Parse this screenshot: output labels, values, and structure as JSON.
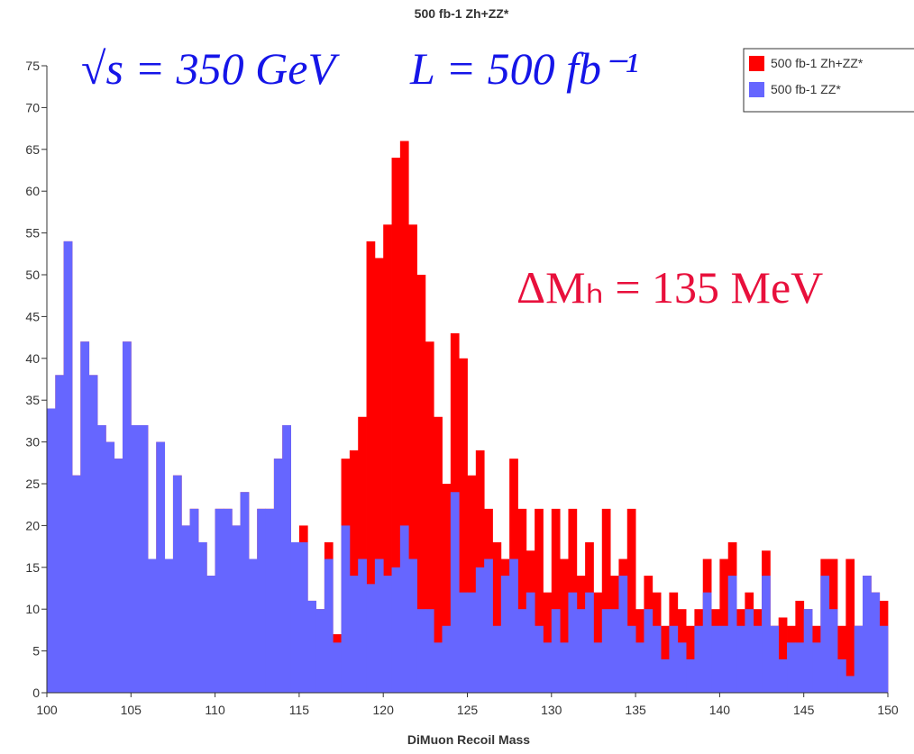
{
  "chart_data": {
    "type": "histogram",
    "title": "500 fb-1 Zh+ZZ*",
    "xlabel": "DiMuon Recoil Mass",
    "annotations": [
      "√s = 350 GeV",
      "L = 500 fb⁻¹",
      "ΔMₕ = 135 MeV"
    ],
    "bins": [
      100,
      100.5,
      101,
      101.5,
      102,
      102.5,
      103,
      103.5,
      104,
      104.5,
      105,
      105.5,
      106,
      106.5,
      107,
      107.5,
      108,
      108.5,
      109,
      109.5,
      110,
      110.5,
      111,
      111.5,
      112,
      112.5,
      113,
      113.5,
      114,
      114.5,
      115,
      115.5,
      116,
      116.5,
      117,
      117.5,
      118,
      118.5,
      119,
      119.5,
      120,
      120.5,
      121,
      121.5,
      122,
      122.5,
      123,
      123.5,
      124,
      124.5,
      125,
      125.5,
      126,
      126.5,
      127,
      127.5,
      128,
      128.5,
      129,
      129.5,
      130,
      130.5,
      131,
      131.5,
      132,
      132.5,
      133,
      133.5,
      134,
      134.5,
      135,
      135.5,
      136,
      136.5,
      137,
      137.5,
      138,
      138.5,
      139,
      139.5,
      140,
      140.5,
      141,
      141.5,
      142,
      142.5,
      143,
      143.5,
      144,
      144.5,
      145,
      145.5,
      146,
      146.5,
      147,
      147.5,
      148,
      148.5,
      149,
      149.5,
      150
    ],
    "series": [
      {
        "name": "500 fb-1 Zh+ZZ*",
        "color": "#ff0000",
        "values": [
          34,
          38,
          54,
          26,
          42,
          38,
          32,
          30,
          28,
          42,
          32,
          32,
          16,
          30,
          16,
          26,
          20,
          22,
          18,
          14,
          22,
          22,
          20,
          24,
          16,
          22,
          22,
          28,
          32,
          18,
          20,
          11,
          10,
          18,
          7,
          28,
          29,
          33,
          54,
          52,
          56,
          64,
          66,
          56,
          50,
          42,
          33,
          25,
          43,
          40,
          26,
          29,
          22,
          18,
          16,
          28,
          22,
          17,
          22,
          12,
          22,
          16,
          22,
          14,
          18,
          12,
          22,
          14,
          16,
          22,
          10,
          14,
          12,
          8,
          12,
          10,
          8,
          10,
          16,
          10,
          16,
          18,
          10,
          12,
          10,
          17,
          8,
          9,
          8,
          11,
          10,
          8,
          16,
          16,
          8,
          16,
          8,
          14,
          12,
          11
        ]
      },
      {
        "name": "500 fb-1 ZZ*",
        "color": "#6666ff",
        "values": [
          34,
          38,
          54,
          26,
          42,
          38,
          32,
          30,
          28,
          42,
          32,
          32,
          16,
          30,
          16,
          26,
          20,
          22,
          18,
          14,
          22,
          22,
          20,
          24,
          16,
          22,
          22,
          28,
          32,
          18,
          18,
          11,
          10,
          16,
          6,
          20,
          14,
          16,
          13,
          16,
          14,
          15,
          20,
          16,
          10,
          10,
          6,
          8,
          24,
          12,
          12,
          15,
          16,
          8,
          14,
          16,
          10,
          12,
          8,
          6,
          10,
          6,
          12,
          10,
          12,
          6,
          10,
          10,
          14,
          8,
          6,
          10,
          8,
          4,
          8,
          6,
          4,
          8,
          12,
          8,
          8,
          14,
          8,
          10,
          8,
          14,
          8,
          4,
          6,
          6,
          10,
          6,
          14,
          10,
          4,
          2,
          8,
          14,
          12,
          8
        ]
      }
    ],
    "xlim": [
      100,
      150
    ],
    "ylim": [
      0,
      75
    ],
    "xticks": [
      100,
      105,
      110,
      115,
      120,
      125,
      130,
      135,
      140,
      145,
      150
    ],
    "yticks": [
      0,
      5,
      10,
      15,
      20,
      25,
      30,
      35,
      40,
      45,
      50,
      55,
      60,
      65,
      70,
      75
    ]
  }
}
